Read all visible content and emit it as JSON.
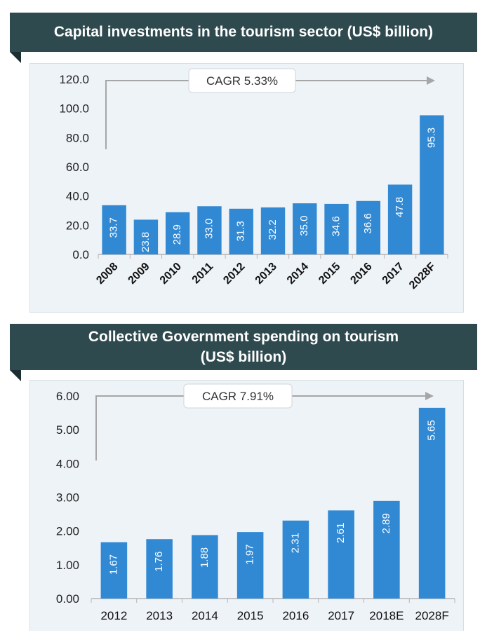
{
  "chart_data": [
    {
      "type": "bar",
      "title": "Capital investments in the tourism sector (US$ billion)",
      "annotation": "CAGR 5.33%",
      "categories": [
        "2008",
        "2009",
        "2010",
        "2011",
        "2012",
        "2013",
        "2014",
        "2015",
        "2016",
        "2017",
        "2028F"
      ],
      "values": [
        33.7,
        23.8,
        28.9,
        33.0,
        31.3,
        32.2,
        35.0,
        34.6,
        36.6,
        47.8,
        95.3
      ],
      "value_labels": [
        "33.7",
        "23.8",
        "28.9",
        "33.0",
        "31.3",
        "32.2",
        "35.0",
        "34.6",
        "36.6",
        "47.8",
        "95.3"
      ],
      "yticks": [
        "0.0",
        "20.0",
        "40.0",
        "60.0",
        "80.0",
        "100.0",
        "120.0"
      ],
      "ylim": [
        0,
        120
      ],
      "xlabel": "",
      "ylabel": "",
      "bar_color": "#3189d4",
      "grid": false
    },
    {
      "type": "bar",
      "title": "Collective Government spending on tourism (US$ billion)",
      "title_lines": [
        "Collective Government spending on tourism",
        "(US$ billion)"
      ],
      "annotation": "CAGR 7.91%",
      "categories": [
        "2012",
        "2013",
        "2014",
        "2015",
        "2016",
        "2017",
        "2018E",
        "2028F"
      ],
      "values": [
        1.67,
        1.76,
        1.88,
        1.97,
        2.31,
        2.61,
        2.89,
        5.65
      ],
      "value_labels": [
        "1.67",
        "1.76",
        "1.88",
        "1.97",
        "2.31",
        "2.61",
        "2.89",
        "5.65"
      ],
      "yticks": [
        "0.00",
        "1.00",
        "2.00",
        "3.00",
        "4.00",
        "5.00",
        "6.00"
      ],
      "ylim": [
        0,
        6
      ],
      "xlabel": "",
      "ylabel": "",
      "bar_color": "#3189d4",
      "grid": false
    }
  ],
  "colors": {
    "header_bg": "#2f4a4f",
    "chart_bg": "#eef3f8",
    "bar": "#3189d4",
    "arrow": "#a6a6a6"
  }
}
